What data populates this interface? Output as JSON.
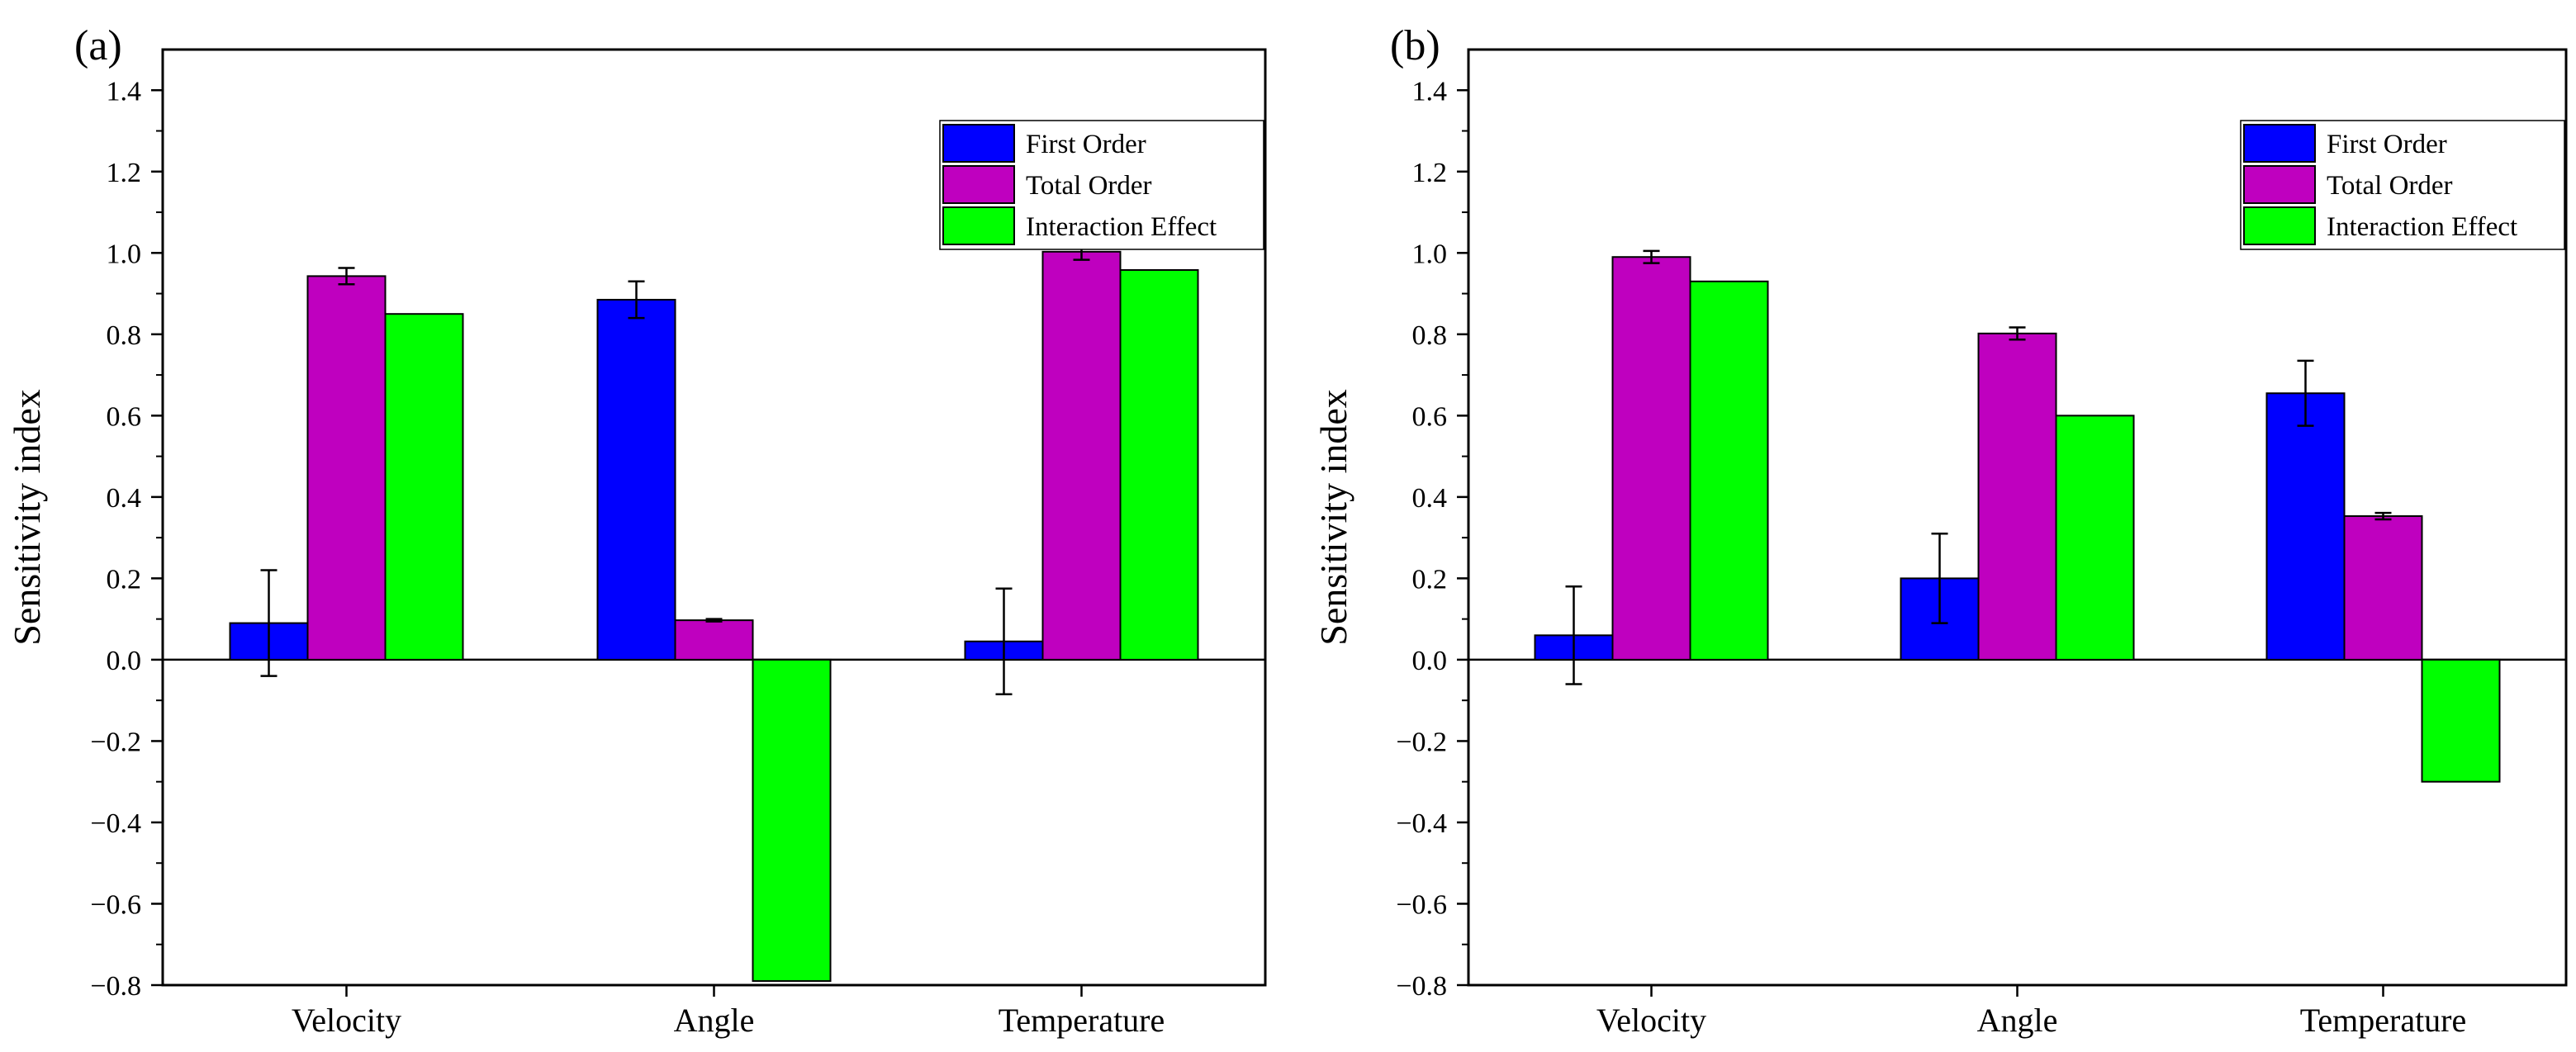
{
  "figure": {
    "panels": [
      "(a)",
      "(b)"
    ]
  },
  "legend": {
    "entries": [
      "First Order",
      "Total Order",
      "Interaction Effect"
    ]
  },
  "colors": {
    "first_order": "#0000ff",
    "total_order": "#bf00bf",
    "interaction": "#00ff00",
    "axis": "#000000"
  },
  "chart_data": [
    {
      "type": "bar",
      "panel_label": "(a)",
      "categories": [
        "Velocity",
        "Angle",
        "Temperature"
      ],
      "series": [
        {
          "name": "First Order",
          "values": [
            0.09,
            0.885,
            0.045
          ],
          "errors": [
            0.13,
            0.045,
            0.13
          ]
        },
        {
          "name": "Total Order",
          "values": [
            0.943,
            0.097,
            1.003
          ],
          "errors": [
            0.02,
            0.003,
            0.02
          ]
        },
        {
          "name": "Interaction Effect",
          "values": [
            0.85,
            -0.79,
            0.958
          ],
          "errors": null
        }
      ],
      "ylabel": "Sensitivity index",
      "xlabel": "",
      "ylim": [
        -0.8,
        1.5
      ],
      "yticks": [
        -0.8,
        -0.6,
        -0.4,
        -0.2,
        0.0,
        0.2,
        0.4,
        0.6,
        0.8,
        1.0,
        1.2,
        1.4
      ],
      "ytick_labels": [
        "−0.8",
        "−0.6",
        "−0.4",
        "−0.2",
        "0.0",
        "0.2",
        "0.4",
        "0.6",
        "0.8",
        "1.0",
        "1.2",
        "1.4"
      ],
      "legend_position": "top-right",
      "grid": false
    },
    {
      "type": "bar",
      "panel_label": "(b)",
      "categories": [
        "Velocity",
        "Angle",
        "Temperature"
      ],
      "series": [
        {
          "name": "First Order",
          "values": [
            0.06,
            0.2,
            0.655
          ],
          "errors": [
            0.12,
            0.11,
            0.08
          ]
        },
        {
          "name": "Total Order",
          "values": [
            0.99,
            0.802,
            0.353
          ],
          "errors": [
            0.015,
            0.015,
            0.008
          ]
        },
        {
          "name": "Interaction Effect",
          "values": [
            0.93,
            0.6,
            -0.3
          ],
          "errors": null
        }
      ],
      "ylabel": "Sensitivity index",
      "xlabel": "",
      "ylim": [
        -0.8,
        1.5
      ],
      "yticks": [
        -0.8,
        -0.6,
        -0.4,
        -0.2,
        0.0,
        0.2,
        0.4,
        0.6,
        0.8,
        1.0,
        1.2,
        1.4
      ],
      "ytick_labels": [
        "−0.8",
        "−0.6",
        "−0.4",
        "−0.2",
        "0.0",
        "0.2",
        "0.4",
        "0.6",
        "0.8",
        "1.0",
        "1.2",
        "1.4"
      ],
      "legend_position": "top-right",
      "grid": false
    }
  ]
}
